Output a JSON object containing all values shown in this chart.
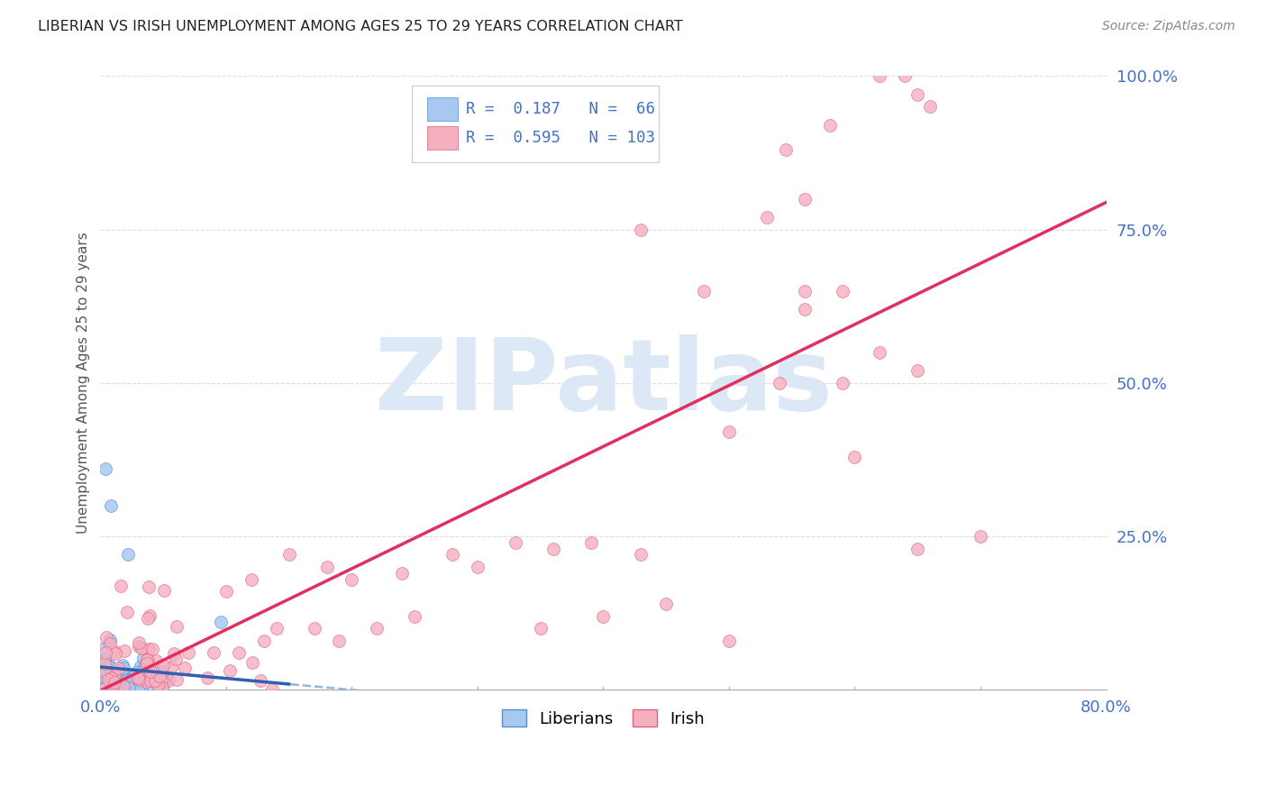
{
  "title": "LIBERIAN VS IRISH UNEMPLOYMENT AMONG AGES 25 TO 29 YEARS CORRELATION CHART",
  "source": "Source: ZipAtlas.com",
  "ylabel": "Unemployment Among Ages 25 to 29 years",
  "blue_color": "#a8c8f0",
  "blue_edge_color": "#5090d0",
  "pink_color": "#f5b0c0",
  "pink_edge_color": "#e06080",
  "blue_line_color": "#3060b0",
  "pink_line_color": "#e03060",
  "dashed_line_color": "#90b8e0",
  "watermark_color": "#dce8f5",
  "grid_color": "#dddddd",
  "right_tick_color": "#4472c4",
  "title_color": "#222222",
  "source_color": "#888888",
  "blue_R": 0.187,
  "blue_N": 66,
  "pink_R": 0.595,
  "pink_N": 103,
  "xlim": [
    0.0,
    0.8
  ],
  "ylim": [
    0.0,
    1.0
  ],
  "yticks": [
    0.0,
    0.25,
    0.5,
    0.75,
    1.0
  ],
  "ytick_labels": [
    "",
    "25.0%",
    "50.0%",
    "75.0%",
    "100.0%"
  ],
  "xtick_labels": [
    "0.0%",
    "80.0%"
  ],
  "marker_size": 100
}
